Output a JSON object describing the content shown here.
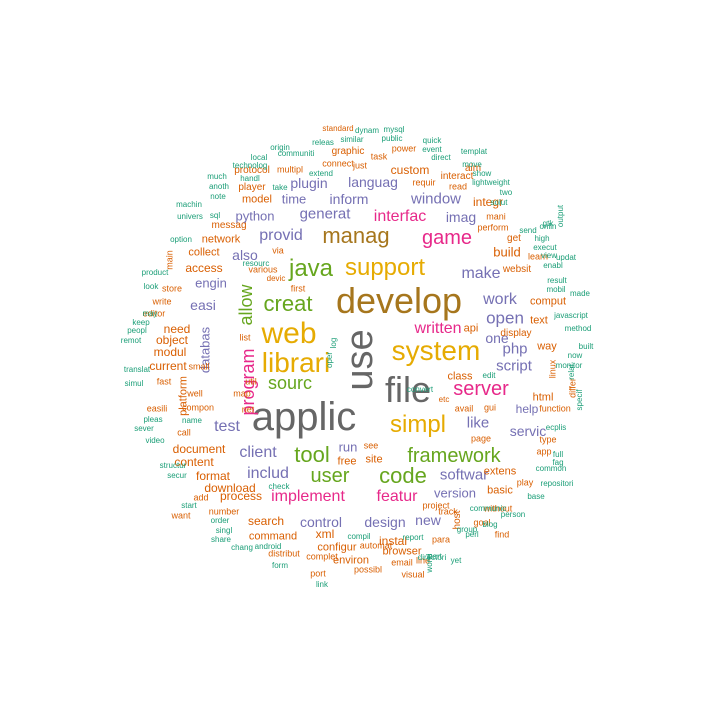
{
  "palette": {
    "gray": "#666666",
    "mustard": "#a6761d",
    "gold": "#e6ab02",
    "green": "#66a61e",
    "pink": "#e7298a",
    "purple": "#7570b3",
    "orange": "#d95f02",
    "teal": "#1b9e77"
  },
  "words": [
    {
      "text": "applic",
      "color": "gray"
    },
    {
      "text": "use",
      "color": "gray"
    },
    {
      "text": "file",
      "color": "gray"
    },
    {
      "text": "develop",
      "color": "mustard"
    },
    {
      "text": "web",
      "color": "gold"
    },
    {
      "text": "system",
      "color": "gold"
    },
    {
      "text": "librari",
      "color": "gold"
    },
    {
      "text": "support",
      "color": "gold"
    },
    {
      "text": "simpl",
      "color": "gold"
    },
    {
      "text": "manag",
      "color": "mustard"
    },
    {
      "text": "java",
      "color": "green"
    },
    {
      "text": "creat",
      "color": "green"
    },
    {
      "text": "game",
      "color": "pink"
    },
    {
      "text": "tool",
      "color": "green"
    },
    {
      "text": "user",
      "color": "green"
    },
    {
      "text": "code",
      "color": "green"
    },
    {
      "text": "framework",
      "color": "green"
    },
    {
      "text": "server",
      "color": "pink"
    },
    {
      "text": "sourc",
      "color": "green"
    },
    {
      "text": "program",
      "color": "pink"
    },
    {
      "text": "allow",
      "color": "green"
    },
    {
      "text": "implement",
      "color": "pink"
    },
    {
      "text": "featur",
      "color": "pink"
    },
    {
      "text": "interfac",
      "color": "pink"
    },
    {
      "text": "written",
      "color": "pink"
    },
    {
      "text": "languag",
      "color": "purple"
    },
    {
      "text": "window",
      "color": "purple"
    },
    {
      "text": "generat",
      "color": "purple"
    },
    {
      "text": "inform",
      "color": "purple"
    },
    {
      "text": "provid",
      "color": "purple"
    },
    {
      "text": "includ",
      "color": "purple"
    },
    {
      "text": "client",
      "color": "purple"
    },
    {
      "text": "test",
      "color": "purple"
    },
    {
      "text": "also",
      "color": "purple"
    },
    {
      "text": "plugin",
      "color": "purple"
    },
    {
      "text": "make",
      "color": "purple"
    },
    {
      "text": "open",
      "color": "purple"
    },
    {
      "text": "work",
      "color": "purple"
    },
    {
      "text": "script",
      "color": "purple"
    },
    {
      "text": "php",
      "color": "purple"
    },
    {
      "text": "like",
      "color": "purple"
    },
    {
      "text": "softwar",
      "color": "purple"
    },
    {
      "text": "control",
      "color": "purple"
    },
    {
      "text": "design",
      "color": "purple"
    },
    {
      "text": "version",
      "color": "purple"
    },
    {
      "text": "imag",
      "color": "purple"
    },
    {
      "text": "one",
      "color": "purple"
    },
    {
      "text": "servic",
      "color": "purple"
    },
    {
      "text": "new",
      "color": "purple"
    },
    {
      "text": "engin",
      "color": "purple"
    },
    {
      "text": "easi",
      "color": "purple"
    },
    {
      "text": "databas",
      "color": "purple"
    },
    {
      "text": "time",
      "color": "purple"
    },
    {
      "text": "python",
      "color": "purple"
    },
    {
      "text": "run",
      "color": "purple"
    },
    {
      "text": "help",
      "color": "purple"
    },
    {
      "text": "build",
      "color": "orange"
    },
    {
      "text": "integr",
      "color": "orange"
    },
    {
      "text": "custom",
      "color": "orange"
    },
    {
      "text": "model",
      "color": "orange"
    },
    {
      "text": "network",
      "color": "orange"
    },
    {
      "text": "access",
      "color": "orange"
    },
    {
      "text": "need",
      "color": "orange"
    },
    {
      "text": "object",
      "color": "orange"
    },
    {
      "text": "modul",
      "color": "orange"
    },
    {
      "text": "current",
      "color": "orange"
    },
    {
      "text": "document",
      "color": "orange"
    },
    {
      "text": "format",
      "color": "orange"
    },
    {
      "text": "content",
      "color": "orange"
    },
    {
      "text": "download",
      "color": "orange"
    },
    {
      "text": "process",
      "color": "orange"
    },
    {
      "text": "search",
      "color": "orange"
    },
    {
      "text": "command",
      "color": "orange"
    },
    {
      "text": "configur",
      "color": "orange"
    },
    {
      "text": "xml",
      "color": "orange"
    },
    {
      "text": "instal",
      "color": "orange"
    },
    {
      "text": "browser",
      "color": "orange"
    },
    {
      "text": "environ",
      "color": "orange"
    },
    {
      "text": "site",
      "color": "orange"
    },
    {
      "text": "free",
      "color": "orange"
    },
    {
      "text": "class",
      "color": "orange"
    },
    {
      "text": "api",
      "color": "orange"
    },
    {
      "text": "html",
      "color": "orange"
    },
    {
      "text": "text",
      "color": "orange"
    },
    {
      "text": "comput",
      "color": "orange"
    },
    {
      "text": "display",
      "color": "orange"
    },
    {
      "text": "way",
      "color": "orange"
    },
    {
      "text": "basic",
      "color": "orange"
    },
    {
      "text": "extens",
      "color": "orange"
    },
    {
      "text": "platform",
      "color": "orange"
    },
    {
      "text": "collect",
      "color": "orange"
    },
    {
      "text": "messag",
      "color": "orange"
    },
    {
      "text": "player",
      "color": "orange"
    },
    {
      "text": "protocol",
      "color": "orange"
    },
    {
      "text": "multipl",
      "color": "orange"
    },
    {
      "text": "graphic",
      "color": "orange"
    },
    {
      "text": "connect",
      "color": "orange"
    },
    {
      "text": "just",
      "color": "orange"
    },
    {
      "text": "task",
      "color": "orange"
    },
    {
      "text": "power",
      "color": "orange"
    },
    {
      "text": "interact",
      "color": "orange"
    },
    {
      "text": "read",
      "color": "orange"
    },
    {
      "text": "requir",
      "color": "orange"
    },
    {
      "text": "mani",
      "color": "orange"
    },
    {
      "text": "perform",
      "color": "orange"
    },
    {
      "text": "get",
      "color": "orange"
    },
    {
      "text": "websit",
      "color": "orange"
    },
    {
      "text": "aim",
      "color": "orange"
    },
    {
      "text": "util",
      "color": "orange"
    },
    {
      "text": "map",
      "color": "orange"
    },
    {
      "text": "net",
      "color": "orange"
    },
    {
      "text": "list",
      "color": "orange"
    },
    {
      "text": "small",
      "color": "orange"
    },
    {
      "text": "fast",
      "color": "orange"
    },
    {
      "text": "well",
      "color": "orange"
    },
    {
      "text": "compon",
      "color": "orange"
    },
    {
      "text": "call",
      "color": "orange"
    },
    {
      "text": "easili",
      "color": "orange"
    },
    {
      "text": "see",
      "color": "orange"
    },
    {
      "text": "add",
      "color": "orange"
    },
    {
      "text": "want",
      "color": "orange"
    },
    {
      "text": "number",
      "color": "orange"
    },
    {
      "text": "distribut",
      "color": "orange"
    },
    {
      "text": "complet",
      "color": "orange"
    },
    {
      "text": "port",
      "color": "orange"
    },
    {
      "text": "possibl",
      "color": "orange"
    },
    {
      "text": "automat",
      "color": "orange"
    },
    {
      "text": "para",
      "color": "orange"
    },
    {
      "text": "goal",
      "color": "orange"
    },
    {
      "text": "project",
      "color": "orange"
    },
    {
      "text": "host",
      "color": "orange"
    },
    {
      "text": "page",
      "color": "orange"
    },
    {
      "text": "avail",
      "color": "orange"
    },
    {
      "text": "etc",
      "color": "orange"
    },
    {
      "text": "gui",
      "color": "orange"
    },
    {
      "text": "linux",
      "color": "orange"
    },
    {
      "text": "differ",
      "color": "orange"
    },
    {
      "text": "function",
      "color": "orange"
    },
    {
      "text": "play",
      "color": "orange"
    },
    {
      "text": "app",
      "color": "orange"
    },
    {
      "text": "type",
      "color": "orange"
    },
    {
      "text": "without",
      "color": "orange"
    },
    {
      "text": "track",
      "color": "orange"
    },
    {
      "text": "learn",
      "color": "orange"
    },
    {
      "text": "write",
      "color": "orange"
    },
    {
      "text": "editor",
      "color": "orange"
    },
    {
      "text": "store",
      "color": "orange"
    },
    {
      "text": "main",
      "color": "orange"
    },
    {
      "text": "various",
      "color": "orange"
    },
    {
      "text": "via",
      "color": "orange"
    },
    {
      "text": "devic",
      "color": "orange"
    },
    {
      "text": "first",
      "color": "orange"
    },
    {
      "text": "visual",
      "color": "orange"
    },
    {
      "text": "line",
      "color": "orange"
    },
    {
      "text": "email",
      "color": "orange"
    },
    {
      "text": "find",
      "color": "orange"
    },
    {
      "text": "standard",
      "color": "orange"
    },
    {
      "text": "dynam",
      "color": "teal"
    },
    {
      "text": "mysql",
      "color": "teal"
    },
    {
      "text": "similar",
      "color": "teal"
    },
    {
      "text": "public",
      "color": "teal"
    },
    {
      "text": "quick",
      "color": "teal"
    },
    {
      "text": "event",
      "color": "teal"
    },
    {
      "text": "releas",
      "color": "teal"
    },
    {
      "text": "origin",
      "color": "teal"
    },
    {
      "text": "communiti",
      "color": "teal"
    },
    {
      "text": "direct",
      "color": "teal"
    },
    {
      "text": "templat",
      "color": "teal"
    },
    {
      "text": "local",
      "color": "teal"
    },
    {
      "text": "technolog",
      "color": "teal"
    },
    {
      "text": "extend",
      "color": "teal"
    },
    {
      "text": "move",
      "color": "teal"
    },
    {
      "text": "show",
      "color": "teal"
    },
    {
      "text": "lightweight",
      "color": "teal"
    },
    {
      "text": "much",
      "color": "teal"
    },
    {
      "text": "anoth",
      "color": "teal"
    },
    {
      "text": "note",
      "color": "teal"
    },
    {
      "text": "handl",
      "color": "teal"
    },
    {
      "text": "take",
      "color": "teal"
    },
    {
      "text": "solut",
      "color": "teal"
    },
    {
      "text": "two",
      "color": "teal"
    },
    {
      "text": "machin",
      "color": "teal"
    },
    {
      "text": "univers",
      "color": "teal"
    },
    {
      "text": "option",
      "color": "teal"
    },
    {
      "text": "product",
      "color": "teal"
    },
    {
      "text": "look",
      "color": "teal"
    },
    {
      "text": "keep",
      "color": "teal"
    },
    {
      "text": "peopl",
      "color": "teal"
    },
    {
      "text": "remot",
      "color": "teal"
    },
    {
      "text": "may",
      "color": "teal"
    },
    {
      "text": "translat",
      "color": "teal"
    },
    {
      "text": "simul",
      "color": "teal"
    },
    {
      "text": "pleas",
      "color": "teal"
    },
    {
      "text": "sever",
      "color": "teal"
    },
    {
      "text": "video",
      "color": "teal"
    },
    {
      "text": "structur",
      "color": "teal"
    },
    {
      "text": "secur",
      "color": "teal"
    },
    {
      "text": "start",
      "color": "teal"
    },
    {
      "text": "order",
      "color": "teal"
    },
    {
      "text": "singl",
      "color": "teal"
    },
    {
      "text": "share",
      "color": "teal"
    },
    {
      "text": "chang",
      "color": "teal"
    },
    {
      "text": "android",
      "color": "teal"
    },
    {
      "text": "form",
      "color": "teal"
    },
    {
      "text": "link",
      "color": "teal"
    },
    {
      "text": "compil",
      "color": "teal"
    },
    {
      "text": "resourc",
      "color": "teal"
    },
    {
      "text": "name",
      "color": "teal"
    },
    {
      "text": "check",
      "color": "teal"
    },
    {
      "text": "sql",
      "color": "teal"
    },
    {
      "text": "convert",
      "color": "teal"
    },
    {
      "text": "oper",
      "color": "teal"
    },
    {
      "text": "full",
      "color": "teal"
    },
    {
      "text": "fag",
      "color": "teal"
    },
    {
      "text": "repositori",
      "color": "teal"
    },
    {
      "text": "base",
      "color": "teal"
    },
    {
      "text": "common",
      "color": "teal"
    },
    {
      "text": "person",
      "color": "teal"
    },
    {
      "text": "blog",
      "color": "teal"
    },
    {
      "text": "perl",
      "color": "teal"
    },
    {
      "text": "group",
      "color": "teal"
    },
    {
      "text": "part",
      "color": "teal"
    },
    {
      "text": "directori",
      "color": "teal"
    },
    {
      "text": "world",
      "color": "teal"
    },
    {
      "text": "report",
      "color": "teal"
    },
    {
      "text": "yet",
      "color": "teal"
    },
    {
      "text": "specif",
      "color": "teal"
    },
    {
      "text": "ecplis",
      "color": "teal"
    },
    {
      "text": "relat",
      "color": "teal"
    },
    {
      "text": "monitor",
      "color": "teal"
    },
    {
      "text": "now",
      "color": "teal"
    },
    {
      "text": "built",
      "color": "teal"
    },
    {
      "text": "method",
      "color": "teal"
    },
    {
      "text": "javascript",
      "color": "teal"
    },
    {
      "text": "made",
      "color": "teal"
    },
    {
      "text": "result",
      "color": "teal"
    },
    {
      "text": "mobil",
      "color": "teal"
    },
    {
      "text": "enabl",
      "color": "teal"
    },
    {
      "text": "view",
      "color": "teal"
    },
    {
      "text": "updat",
      "color": "teal"
    },
    {
      "text": "execut",
      "color": "teal"
    },
    {
      "text": "high",
      "color": "teal"
    },
    {
      "text": "send",
      "color": "teal"
    },
    {
      "text": "onlin",
      "color": "teal"
    },
    {
      "text": "output",
      "color": "teal"
    },
    {
      "text": "communic",
      "color": "teal"
    },
    {
      "text": "edit",
      "color": "teal"
    },
    {
      "text": "log",
      "color": "teal"
    },
    {
      "text": "gtk",
      "color": "teal"
    },
    {
      "text": "exampl",
      "color": "teal"
    }
  ]
}
